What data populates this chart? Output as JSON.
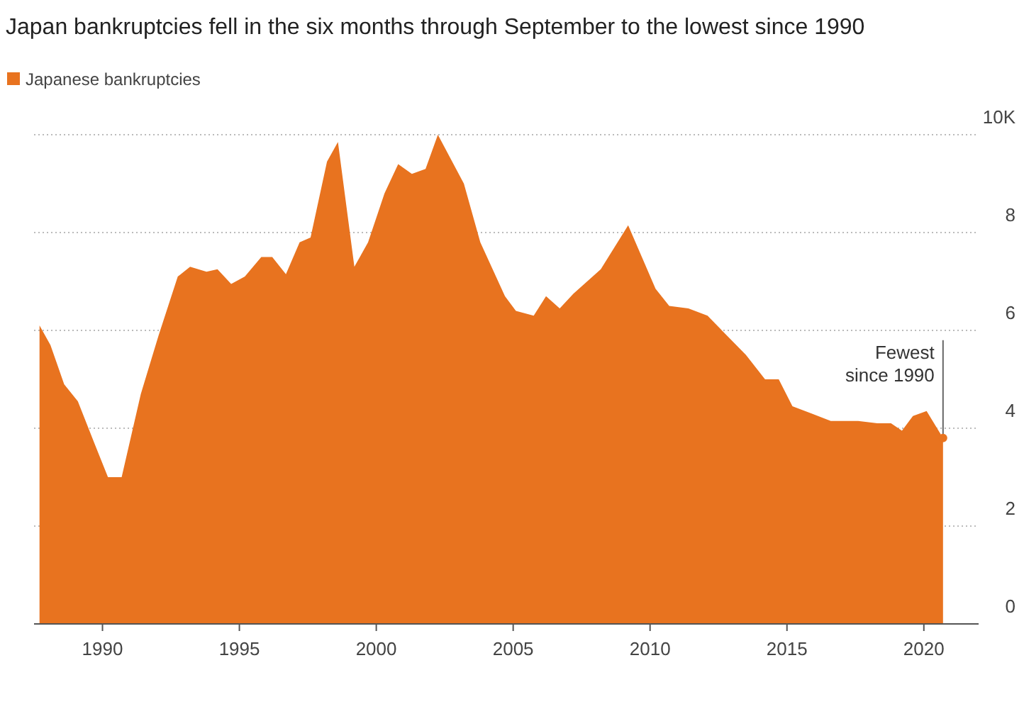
{
  "chart_data": {
    "type": "area",
    "title": "Japan bankruptcies fell in the six months through September to the lowest since 1990",
    "xlim": [
      1987.5,
      2022
    ],
    "xticks": [
      1990,
      1995,
      2000,
      2005,
      2010,
      2015,
      2020
    ],
    "ylim": [
      0,
      10
    ],
    "yticks": [
      0,
      2,
      4,
      6,
      8,
      {
        "value": 10,
        "label": "10K"
      }
    ],
    "grid": "y",
    "legend": "top left",
    "annotations": [
      {
        "text": "Fewest since 1990",
        "x": 2020.7,
        "y": 3.8
      }
    ],
    "series": [
      {
        "name": "Japanese bankruptcies",
        "color": "#e8731f",
        "x": [
          1987.7,
          1988.1,
          1988.6,
          1989.1,
          1989.7,
          1990.2,
          1990.7,
          1991.4,
          1992.05,
          1992.75,
          1993.2,
          1993.8,
          1994.2,
          1994.7,
          1995.2,
          1995.8,
          1996.2,
          1996.7,
          1997.2,
          1997.6,
          1998.2,
          1998.6,
          1999.2,
          1999.7,
          2000.3,
          2000.8,
          2001.3,
          2001.8,
          2002.25,
          2003.2,
          2003.8,
          2004.7,
          2005.1,
          2005.75,
          2006.2,
          2006.7,
          2007.2,
          2008.2,
          2009.2,
          2009.7,
          2010.2,
          2010.7,
          2011.4,
          2012.1,
          2012.8,
          2013.5,
          2014.2,
          2014.7,
          2015.2,
          2015.9,
          2016.6,
          2017.6,
          2018.3,
          2018.8,
          2019.2,
          2019.6,
          2020.1,
          2020.7
        ],
        "values": [
          6.1,
          5.7,
          4.9,
          4.55,
          3.7,
          3.0,
          3.0,
          4.7,
          5.9,
          7.1,
          7.3,
          7.2,
          7.25,
          6.95,
          7.1,
          7.5,
          7.5,
          7.15,
          7.8,
          7.9,
          9.45,
          9.85,
          7.3,
          7.8,
          8.8,
          9.4,
          9.2,
          9.3,
          10.0,
          9.0,
          7.8,
          6.7,
          6.4,
          6.3,
          6.7,
          6.45,
          6.75,
          7.25,
          8.15,
          7.5,
          6.85,
          6.5,
          6.45,
          6.3,
          5.9,
          5.5,
          5.0,
          5.0,
          4.45,
          4.3,
          4.15,
          4.15,
          4.1,
          4.1,
          3.95,
          4.25,
          4.35,
          3.8
        ]
      }
    ]
  }
}
